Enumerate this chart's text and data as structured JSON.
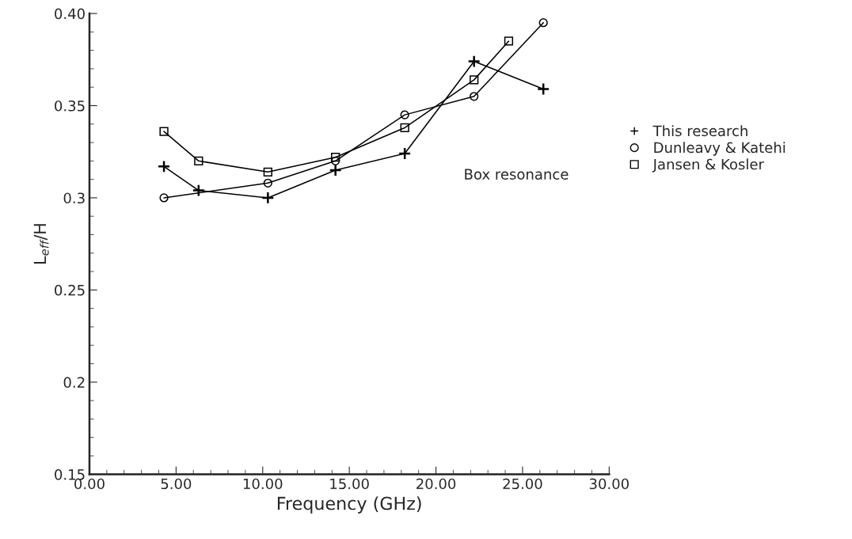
{
  "chart_data": {
    "type": "line",
    "xlabel": "Frequency (GHz)",
    "ylabel": "L$_{eff}$/H",
    "xlim": [
      0,
      30
    ],
    "ylim": [
      0.15,
      0.4
    ],
    "xticks": [
      {
        "value": 0,
        "label": "0.00"
      },
      {
        "value": 5,
        "label": "5.00"
      },
      {
        "value": 10,
        "label": "10.00"
      },
      {
        "value": 15,
        "label": "15.00"
      },
      {
        "value": 20,
        "label": "20.00"
      },
      {
        "value": 25,
        "label": "25.00"
      },
      {
        "value": 30,
        "label": "30.00"
      }
    ],
    "yticks": [
      0.15,
      0.2,
      0.25,
      0.3,
      0.35,
      {
        "value": 0.4,
        "label": "0.40"
      }
    ],
    "series": [
      {
        "name": "This research",
        "color": "#000000",
        "marker": "cross",
        "x": [
          4.3,
          6.3,
          10.3,
          14.2,
          18.2,
          22.2,
          26.2
        ],
        "values": [
          0.317,
          0.304,
          0.3,
          0.315,
          0.324,
          0.374,
          0.359
        ]
      },
      {
        "name": "Dunleavy & Katehi",
        "color": "#000000",
        "marker": "circle",
        "x": [
          4.3,
          10.3,
          14.2,
          18.2,
          22.2,
          26.2
        ],
        "values": [
          0.3,
          0.308,
          0.32,
          0.345,
          0.355,
          0.395
        ]
      },
      {
        "name": "Jansen & Kosler",
        "color": "#000000",
        "marker": "square",
        "x": [
          4.3,
          6.3,
          10.3,
          14.2,
          18.2,
          22.2,
          24.2
        ],
        "values": [
          0.336,
          0.32,
          0.314,
          0.322,
          0.338,
          0.364,
          0.385
        ]
      }
    ],
    "annotations": [
      "Box resonance"
    ],
    "legend": "right",
    "grid": false
  }
}
